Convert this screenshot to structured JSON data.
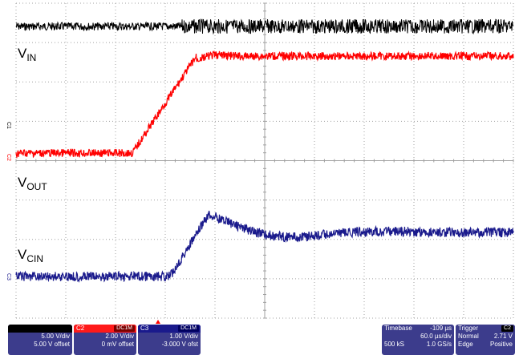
{
  "labels": {
    "vin": "V",
    "vin_sub": "IN",
    "vout": "V",
    "vout_sub": "OUT",
    "vcin": "V",
    "vcin_sub": "CIN"
  },
  "markers": {
    "c1": "C1",
    "c2": "C2",
    "c3": "C3"
  },
  "channels": {
    "c1": {
      "line1": "5.00 V/div",
      "line2": "5.00 V offset"
    },
    "c2": {
      "name": "C2",
      "tag": "DC1M",
      "line1": "2.00 V/div",
      "line2": "0 mV offset"
    },
    "c3": {
      "name": "C3",
      "tag": "DC1M",
      "line1": "1.00 V/div",
      "line2": "-3.000 V ofst"
    }
  },
  "timebase": {
    "title": "Timebase",
    "value": "-109 µs",
    "line1": "60.0 µs/div",
    "rate": "500 kS",
    "sps": "1.0 GS/s"
  },
  "trigger": {
    "title": "Trigger",
    "tag": "C2",
    "mode": "Normal",
    "level": "2.71 V",
    "type": "Edge",
    "slope": "Positive"
  },
  "colors": {
    "c1": "#000000",
    "c2": "#ff0000",
    "c3": "#1a1a8c",
    "grid": "#a0a0a0"
  }
}
